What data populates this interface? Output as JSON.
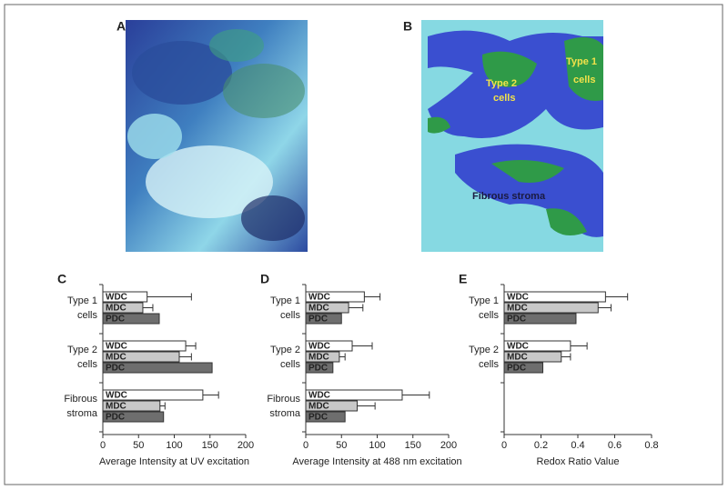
{
  "panels": [
    {
      "label": "A"
    },
    {
      "label": "B",
      "annotations": [
        [
          "Type 1",
          "cells"
        ],
        [
          "Type 2",
          "cells"
        ],
        [
          "Fibrous stroma"
        ]
      ]
    }
  ],
  "chart_data": [
    {
      "type": "hbar",
      "panel": "C",
      "xlabel": "Average Intensity at UV excitation",
      "categories": [
        [
          "Type 1",
          "cells"
        ],
        [
          "Type 2",
          "cells"
        ],
        [
          "Fibrous",
          "stroma"
        ]
      ],
      "series": [
        {
          "name": "WDC",
          "color": "#ffffff",
          "values": [
            62,
            116,
            140
          ],
          "errors": [
            62,
            14,
            22
          ]
        },
        {
          "name": "MDC",
          "color": "#c8c8c8",
          "values": [
            56,
            107,
            80
          ],
          "errors": [
            14,
            17,
            7
          ]
        },
        {
          "name": "PDC",
          "color": "#6e6e6e",
          "values": [
            79,
            153,
            85
          ],
          "errors": [
            null,
            null,
            null
          ]
        }
      ],
      "xlim": [
        0,
        200
      ],
      "xticks": [
        0,
        50,
        100,
        150,
        200
      ]
    },
    {
      "type": "hbar",
      "panel": "D",
      "xlabel": "Average Intensity at 488 nm excitation",
      "categories": [
        [
          "Type 1",
          "cells"
        ],
        [
          "Type 2",
          "cells"
        ],
        [
          "Fibrous",
          "stroma"
        ]
      ],
      "series": [
        {
          "name": "WDC",
          "color": "#ffffff",
          "values": [
            82,
            65,
            135
          ],
          "errors": [
            22,
            28,
            38
          ]
        },
        {
          "name": "MDC",
          "color": "#c8c8c8",
          "values": [
            60,
            47,
            72
          ],
          "errors": [
            20,
            8,
            25
          ]
        },
        {
          "name": "PDC",
          "color": "#6e6e6e",
          "values": [
            50,
            38,
            55
          ],
          "errors": [
            null,
            null,
            null
          ]
        }
      ],
      "xlim": [
        0,
        200
      ],
      "xticks": [
        0,
        50,
        100,
        150,
        200
      ]
    },
    {
      "type": "hbar",
      "panel": "E",
      "xlabel": "Redox Ratio Value",
      "categories": [
        [
          "Type 1",
          "cells"
        ],
        [
          "Type 2",
          "cells"
        ]
      ],
      "series": [
        {
          "name": "WDC",
          "color": "#ffffff",
          "values": [
            0.55,
            0.36
          ],
          "errors": [
            0.12,
            0.09
          ]
        },
        {
          "name": "MDC",
          "color": "#c8c8c8",
          "values": [
            0.51,
            0.31
          ],
          "errors": [
            0.07,
            0.05
          ]
        },
        {
          "name": "PDC",
          "color": "#6e6e6e",
          "values": [
            0.39,
            0.21
          ],
          "errors": [
            null,
            null
          ]
        }
      ],
      "xlim": [
        0,
        0.8
      ],
      "xticks": [
        0,
        0.2,
        0.4,
        0.6,
        0.8
      ]
    }
  ]
}
